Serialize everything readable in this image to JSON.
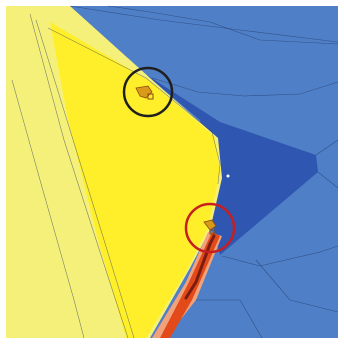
{
  "map": {
    "colors": {
      "background": "#ffffff",
      "ocean_blue": "#4f7fc6",
      "deep_blue": "#2f56b0",
      "pale_yellow": "#f5f07a",
      "bright_yellow": "#ffef2a",
      "salmon": "#f2a27a",
      "orange_red": "#e24a1a",
      "dark_red": "#7a1c10",
      "circle_black": "#1f1f1f",
      "circle_red": "#c61f1f",
      "cluster_orange": "#d99a1a"
    },
    "markers": [
      {
        "name": "black-circle",
        "color": "circle_black"
      },
      {
        "name": "red-circle",
        "color": "circle_red"
      }
    ]
  }
}
